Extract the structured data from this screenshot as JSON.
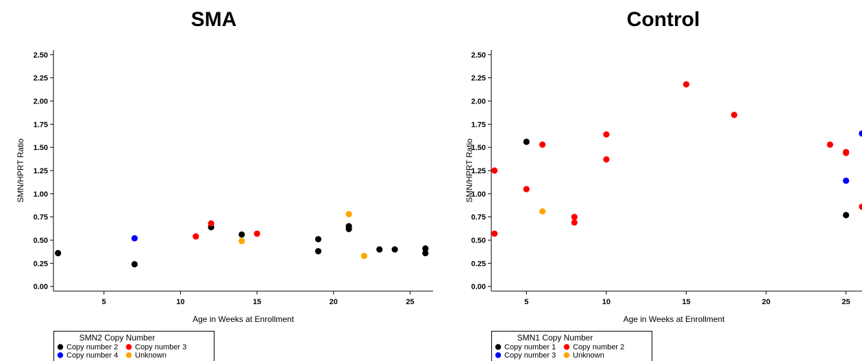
{
  "chart_data": [
    {
      "type": "scatter",
      "title": "SMA",
      "xlabel": "Age in Weeks at Enrollment",
      "ylabel": "SMN/HPRT Ratio",
      "xlim": [
        1.7,
        26.5
      ],
      "ylim": [
        -0.05,
        2.55
      ],
      "xticks": [
        "5",
        "10",
        "15",
        "20",
        "25"
      ],
      "yticks": [
        "0.00",
        "0.25",
        "0.50",
        "0.75",
        "1.00",
        "1.25",
        "1.50",
        "1.75",
        "2.00",
        "2.25",
        "2.50"
      ],
      "grid": false,
      "legend": {
        "title": "SMN2 Copy Number",
        "placement": "bottom-left",
        "entries": [
          "Copy number 2",
          "Copy number 3",
          "Copy number 4",
          "Unknown"
        ]
      },
      "series": [
        {
          "name": "Copy number 2",
          "color": "#000000",
          "points": [
            [
              2,
              0.36
            ],
            [
              7,
              0.24
            ],
            [
              12,
              0.64
            ],
            [
              14,
              0.56
            ],
            [
              19,
              0.51
            ],
            [
              19,
              0.38
            ],
            [
              21,
              0.65
            ],
            [
              21,
              0.62
            ],
            [
              23,
              0.4
            ],
            [
              24,
              0.4
            ],
            [
              26,
              0.41
            ],
            [
              26,
              0.36
            ]
          ]
        },
        {
          "name": "Copy number 3",
          "color": "#ff0000",
          "points": [
            [
              11,
              0.54
            ],
            [
              12,
              0.68
            ],
            [
              15,
              0.57
            ]
          ]
        },
        {
          "name": "Copy number 4",
          "color": "#0000ff",
          "points": [
            [
              7,
              0.52
            ]
          ]
        },
        {
          "name": "Unknown",
          "color": "#ffa500",
          "points": [
            [
              14,
              0.49
            ],
            [
              21,
              0.78
            ],
            [
              22,
              0.33
            ]
          ]
        }
      ]
    },
    {
      "type": "scatter",
      "title": "Control",
      "xlabel": "Age in Weeks at Enrollment",
      "ylabel": "SMN/HPRT Ratio",
      "xlim": [
        2.8,
        26
      ],
      "ylim": [
        -0.05,
        2.55
      ],
      "xticks": [
        "5",
        "10",
        "15",
        "20",
        "25"
      ],
      "yticks": [
        "0.00",
        "0.25",
        "0.50",
        "0.75",
        "1.00",
        "1.25",
        "1.50",
        "1.75",
        "2.00",
        "2.25",
        "2.50"
      ],
      "grid": false,
      "legend": {
        "title": "SMN1 Copy Number",
        "placement": "bottom-left",
        "entries": [
          "Copy number 1",
          "Copy number 2",
          "Copy number 3",
          "Unknown"
        ]
      },
      "series": [
        {
          "name": "Copy number 1",
          "color": "#000000",
          "points": [
            [
              5,
              1.56
            ],
            [
              25,
              0.77
            ]
          ]
        },
        {
          "name": "Copy number 2",
          "color": "#ff0000",
          "points": [
            [
              3,
              1.25
            ],
            [
              3,
              0.57
            ],
            [
              5,
              1.05
            ],
            [
              6,
              1.53
            ],
            [
              8,
              0.75
            ],
            [
              8,
              0.69
            ],
            [
              10,
              1.64
            ],
            [
              10,
              1.37
            ],
            [
              15,
              2.18
            ],
            [
              18,
              1.85
            ],
            [
              24,
              1.53
            ],
            [
              25,
              1.45
            ],
            [
              25,
              1.44
            ],
            [
              26,
              0.86
            ]
          ]
        },
        {
          "name": "Copy number 3",
          "color": "#0000ff",
          "points": [
            [
              25,
              1.14
            ],
            [
              26,
              1.65
            ]
          ]
        },
        {
          "name": "Unknown",
          "color": "#ffa500",
          "points": [
            [
              6,
              0.81
            ]
          ]
        }
      ]
    }
  ]
}
